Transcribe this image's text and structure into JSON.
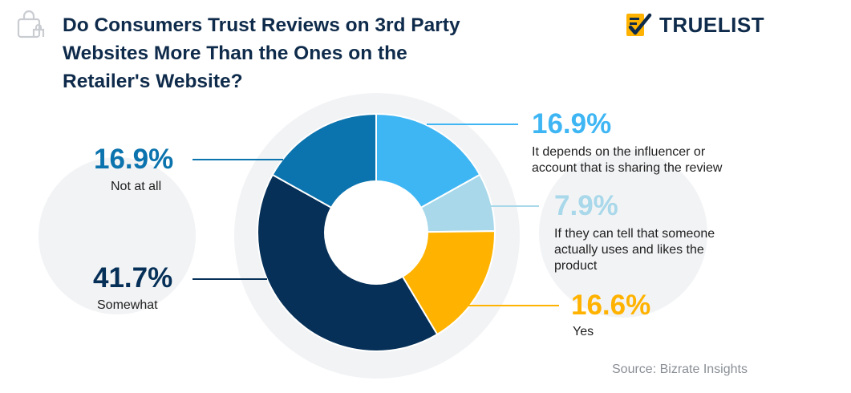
{
  "title_lines": [
    "Do Consumers Trust Reviews on 3rd Party",
    "Websites More Than the Ones on the",
    "Retailer's Website?"
  ],
  "brand": "TRUELIST",
  "source": "Source: Bizrate Insights",
  "icons": {
    "header": "shopping-bag-icon",
    "logo": "checklist-icon"
  },
  "colors": {
    "title": "#0f2b4b",
    "it_depends": "#3fb6f4",
    "if_they_can_tell": "#a8d8ea",
    "yes": "#ffb300",
    "somewhat": "#063058",
    "not_at_all": "#0b73ad"
  },
  "chart_data": {
    "type": "pie",
    "donut": true,
    "slices": [
      {
        "value": "16.9%",
        "number": 16.9,
        "label": [
          "It depends on the influencer or",
          "account that is sharing the review"
        ],
        "color": "#3fb6f4"
      },
      {
        "value": "7.9%",
        "number": 7.9,
        "label": [
          "If they can tell that someone",
          "actually uses and likes the",
          "product"
        ],
        "color": "#a8d8ea"
      },
      {
        "value": "16.6%",
        "number": 16.6,
        "label": [
          "Yes"
        ],
        "color": "#ffb300"
      },
      {
        "value": "41.7%",
        "number": 41.7,
        "label": [
          "Somewhat"
        ],
        "color": "#063058"
      },
      {
        "value": "16.9%",
        "number": 16.9,
        "label": [
          "Not at all"
        ],
        "color": "#0b73ad"
      }
    ]
  }
}
